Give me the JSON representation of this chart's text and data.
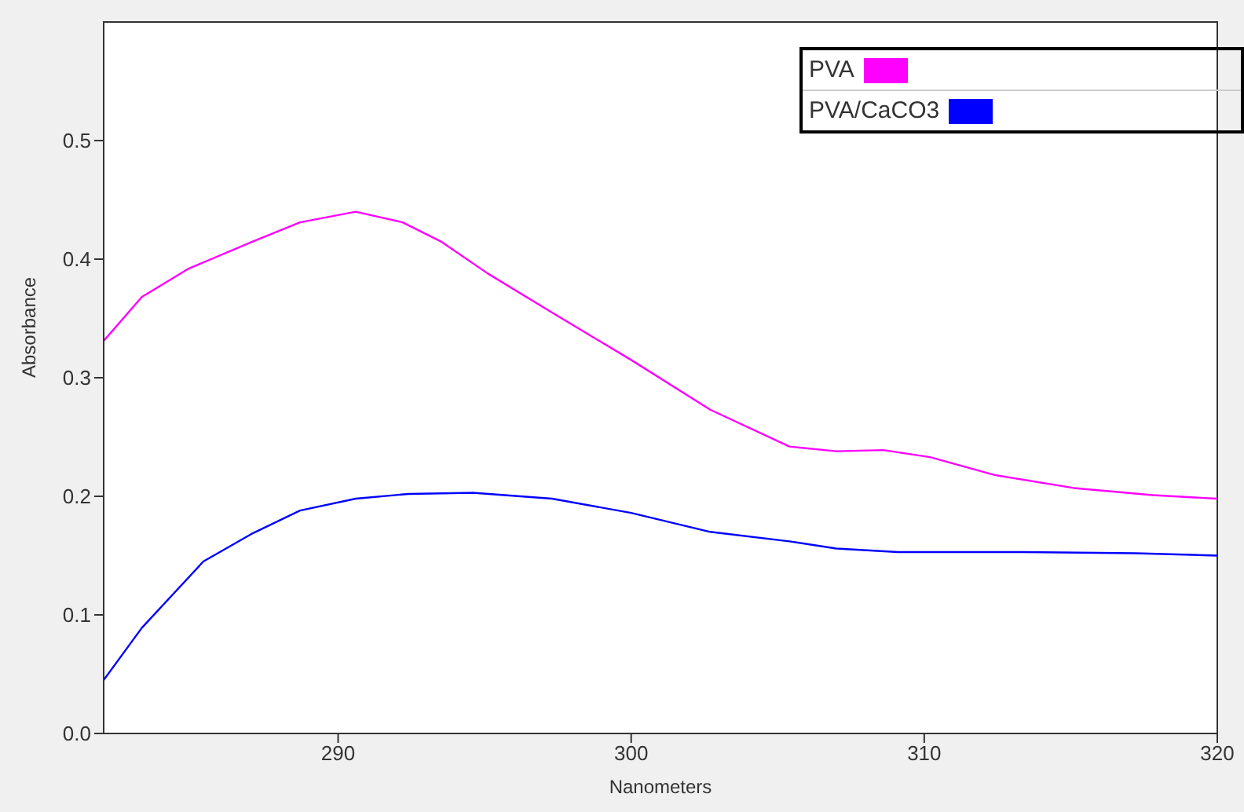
{
  "chart_data": {
    "type": "line",
    "xlabel": "Nanometers",
    "ylabel": "Absorbance",
    "xlim": [
      282,
      320
    ],
    "xticks": [
      290,
      300,
      310,
      320
    ],
    "ylim": [
      0,
      0.6
    ],
    "yticks": [
      {
        "value": 0,
        "label": "0.0"
      },
      0.1,
      0.2,
      0.3,
      0.4,
      0.5
    ],
    "legend": "top right",
    "marker": "none",
    "line_style": "solid",
    "series": [
      {
        "name": "PVA",
        "color": "#ff00ff",
        "x": [
          282,
          283.3,
          284.9,
          287.1,
          288.7,
          290.6,
          292.2,
          293.5,
          295.1,
          297.3,
          300,
          302.7,
          305.4,
          307,
          308.6,
          310.2,
          312.4,
          315.1,
          317.8,
          320
        ],
        "values": [
          0.331,
          0.368,
          0.392,
          0.415,
          0.431,
          0.44,
          0.431,
          0.415,
          0.388,
          0.355,
          0.315,
          0.273,
          0.242,
          0.238,
          0.239,
          0.233,
          0.218,
          0.207,
          0.201,
          0.198
        ]
      },
      {
        "name": "PVA/CaCO3",
        "color": "#0000ff",
        "x": [
          282,
          283.3,
          285.4,
          287.1,
          288.7,
          290.6,
          292.4,
          294.6,
          297.3,
          300,
          302.7,
          305.4,
          307,
          309.1,
          313.4,
          317.2,
          320
        ],
        "values": [
          0.045,
          0.089,
          0.145,
          0.169,
          0.188,
          0.198,
          0.202,
          0.203,
          0.198,
          0.186,
          0.17,
          0.162,
          0.156,
          0.153,
          0.153,
          0.152,
          0.15
        ]
      }
    ]
  }
}
